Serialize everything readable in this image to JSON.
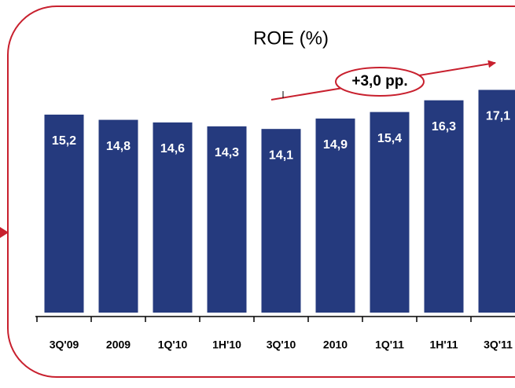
{
  "chart_data": {
    "type": "bar",
    "title": "ROE (%)",
    "annotation": "+3,0 pp.",
    "categories": [
      "3Q'09",
      "2009",
      "1Q'10",
      "1H'10",
      "3Q'10",
      "2010",
      "1Q'11",
      "1H'11",
      "3Q'11"
    ],
    "values": [
      15.2,
      14.8,
      14.6,
      14.3,
      14.1,
      14.9,
      15.4,
      16.3,
      17.1
    ],
    "value_labels": [
      "15,2",
      "14,8",
      "14,6",
      "14,3",
      "14,1",
      "14,9",
      "15,4",
      "16,3",
      "17,1"
    ],
    "color": "#253a7e",
    "ylim": [
      0,
      24
    ]
  }
}
